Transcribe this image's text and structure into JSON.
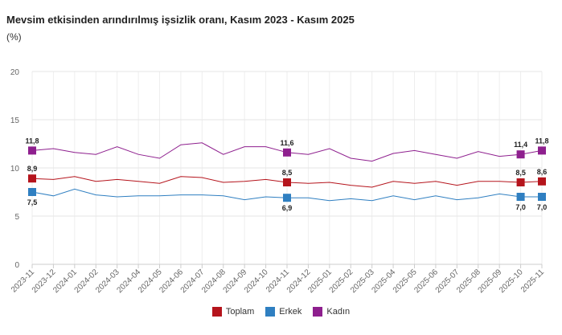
{
  "chart_data": {
    "type": "line",
    "title": "Mevsim etkisinden arındırılmış işsizlik oranı, Kasım 2023 - Kasım 2025",
    "subtitle": "(%)",
    "ylim": [
      0,
      20
    ],
    "yticks": [
      0,
      5,
      10,
      15,
      20
    ],
    "categories": [
      "2023-11",
      "2023-12",
      "2024-01",
      "2024-02",
      "2024-03",
      "2024-04",
      "2024-05",
      "2024-06",
      "2024-07",
      "2024-08",
      "2024-09",
      "2024-10",
      "2024-11",
      "2024-12",
      "2025-01",
      "2025-02",
      "2025-03",
      "2025-04",
      "2025-05",
      "2025-06",
      "2025-07",
      "2025-08",
      "2025-09",
      "2025-10",
      "2025-11"
    ],
    "series": [
      {
        "name": "Toplam",
        "color": "#b5141c",
        "values": [
          8.9,
          8.8,
          9.1,
          8.6,
          8.8,
          8.6,
          8.4,
          9.1,
          9.0,
          8.5,
          8.6,
          8.8,
          8.5,
          8.4,
          8.5,
          8.2,
          8.0,
          8.6,
          8.4,
          8.6,
          8.2,
          8.6,
          8.6,
          8.5,
          8.6
        ],
        "labels": {
          "0": "8,9",
          "12": "8,5",
          "23": "8,5",
          "24": "8,6"
        }
      },
      {
        "name": "Erkek",
        "color": "#2f7fc1",
        "values": [
          7.5,
          7.1,
          7.8,
          7.2,
          7.0,
          7.1,
          7.1,
          7.2,
          7.2,
          7.1,
          6.7,
          7.0,
          6.9,
          6.9,
          6.6,
          6.8,
          6.6,
          7.1,
          6.7,
          7.1,
          6.7,
          6.9,
          7.3,
          7.0,
          7.0
        ],
        "labels": {
          "0": "7,5",
          "12": "6,9",
          "23": "7,0",
          "24": "7,0"
        }
      },
      {
        "name": "Kadın",
        "color": "#8e1f8e",
        "values": [
          11.8,
          12.0,
          11.6,
          11.4,
          12.2,
          11.4,
          11.0,
          12.4,
          12.6,
          11.4,
          12.2,
          12.2,
          11.6,
          11.4,
          12.0,
          11.0,
          10.7,
          11.5,
          11.8,
          11.4,
          11.0,
          11.7,
          11.2,
          11.4,
          11.8
        ],
        "labels": {
          "0": "11,8",
          "12": "11,6",
          "23": "11,4",
          "24": "11,8"
        }
      }
    ],
    "legend_position": "bottom-center",
    "grid": true
  }
}
